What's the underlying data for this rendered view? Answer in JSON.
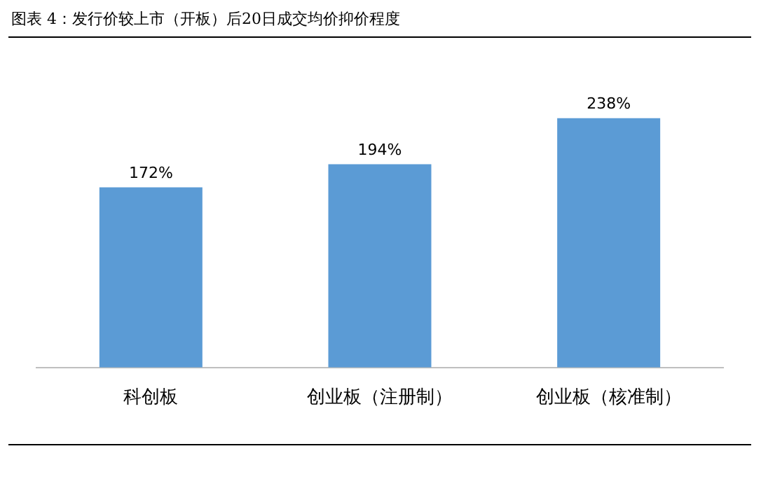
{
  "chart_data": {
    "type": "bar",
    "title": "图表 4：发行价较上市（开板）后20日成交均价抑价程度",
    "categories": [
      "科创板",
      "创业板（注册制）",
      "创业板（核准制）"
    ],
    "values": [
      172,
      194,
      238
    ],
    "value_labels": [
      "172%",
      "194%",
      "238%"
    ],
    "color": "#5b9bd5",
    "tick_labels": "x",
    "grid": false,
    "legend": false
  }
}
